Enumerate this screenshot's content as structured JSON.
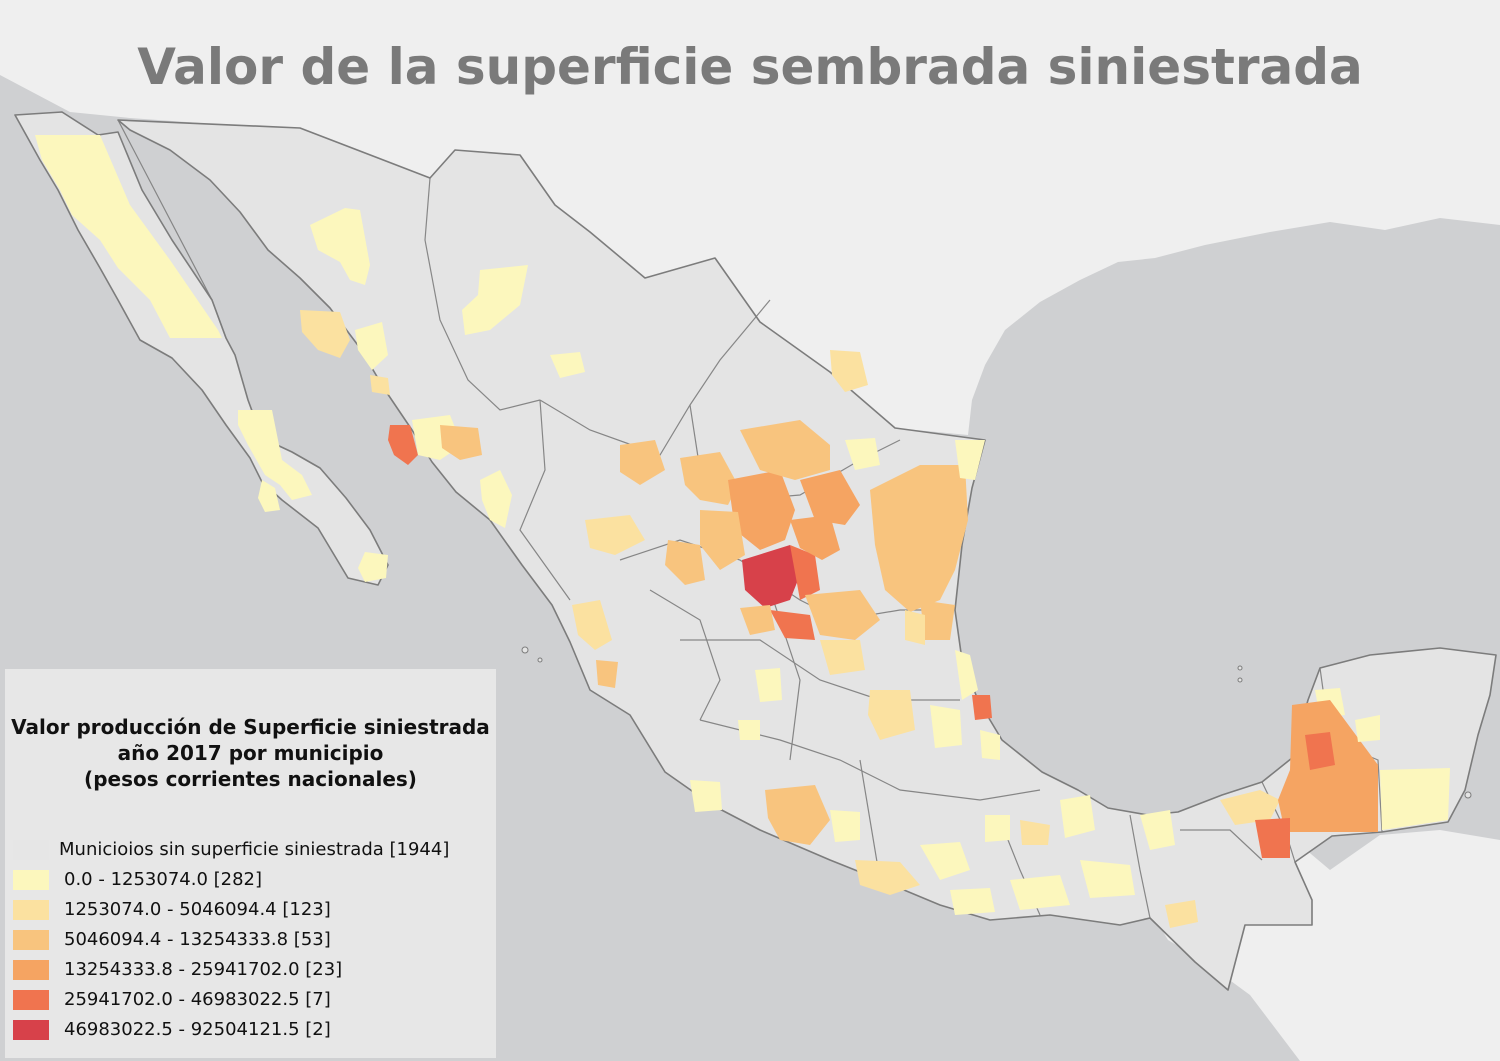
{
  "map": {
    "title": "Valor de la superficie sembrada siniestrada",
    "colors": {
      "ocean": "#cfd0d2",
      "land_outside": "#efefef",
      "mexico_base": "#e4e4e4",
      "borders": "#7c7c7c"
    },
    "legend": {
      "title_lines": [
        "Valor producción de Superficie siniestrada",
        "año 2017 por municipio",
        "(pesos corrientes nacionales)"
      ],
      "items": [
        {
          "label": "Municioios sin superficie siniestrada [1944]",
          "color": "#e6e6e6"
        },
        {
          "label": "0.0 - 1253074.0  [282]",
          "color": "#fcf7bd"
        },
        {
          "label": "1253074.0 - 5046094.4  [123]",
          "color": "#fbe1a0"
        },
        {
          "label": "5046094.4 - 13254333.8  [53]",
          "color": "#f8c47e"
        },
        {
          "label": "13254333.8 - 25941702.0  [23]",
          "color": "#f5a462"
        },
        {
          "label": "25941702.0 - 46983022.5  [7]",
          "color": "#f0744f"
        },
        {
          "label": "46983022.5 - 92504121.5  [2]",
          "color": "#d7414a"
        }
      ]
    }
  }
}
